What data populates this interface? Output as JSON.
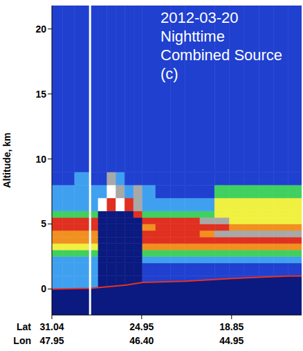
{
  "chart_data": {
    "type": "heatmap",
    "title": "2012-03-20",
    "annotations": [
      "Nighttime",
      "Combined Source",
      "(c)"
    ],
    "ylabel": "Altitude, km",
    "xlabel": "Lat",
    "xlim": [
      31.04,
      14.1
    ],
    "xticks": [
      31.04,
      24.95,
      18.85
    ],
    "ylim": [
      -2,
      21.8
    ],
    "yticks": [
      0,
      5,
      10,
      15,
      20
    ],
    "lon_label": "Lon",
    "lon_ticks": [
      47.95,
      {
        "value": 46.4,
        "label": "46.40"
      },
      44.95
    ],
    "x_edges": [
      31.04,
      30.3,
      29.5,
      28.45,
      27.9,
      27.3,
      26.7,
      26.1,
      25.5,
      24.9,
      24.0,
      23.0,
      22.0,
      21.0,
      20.0,
      19.0,
      18.0,
      17.0,
      16.0,
      15.0,
      14.1
    ],
    "y_edges": [
      -2,
      0,
      1,
      2,
      2.5,
      3,
      3.5,
      4,
      4.5,
      5,
      5.5,
      6,
      7,
      8,
      9,
      21.8
    ],
    "colorscale": [
      "#0b1a80",
      "#2040d0",
      "#40a0f0",
      "#40d060",
      "#f0f040",
      "#f09020",
      "#e03020",
      "#a8a8a8",
      "#ffffff"
    ],
    "cells": [
      [
        0,
        0,
        0,
        0,
        0,
        0,
        0,
        0,
        0,
        0,
        0,
        0,
        0,
        0,
        0,
        0,
        0,
        0,
        0,
        0
      ],
      [
        2,
        2,
        2,
        2,
        0,
        0,
        0,
        0,
        0,
        1,
        1,
        1,
        1,
        1,
        1,
        1,
        1,
        1,
        1,
        1
      ],
      [
        2,
        2,
        2,
        2,
        0,
        0,
        0,
        0,
        0,
        1,
        1,
        1,
        1,
        1,
        1,
        1,
        1,
        1,
        1,
        1
      ],
      [
        2,
        2,
        2,
        2,
        0,
        0,
        0,
        0,
        0,
        2,
        2,
        2,
        2,
        2,
        2,
        2,
        2,
        2,
        2,
        2
      ],
      [
        3,
        3,
        3,
        3,
        0,
        0,
        0,
        0,
        0,
        3,
        3,
        3,
        3,
        3,
        3,
        3,
        3,
        3,
        3,
        3
      ],
      [
        4,
        4,
        4,
        4,
        0,
        0,
        0,
        0,
        0,
        5,
        5,
        5,
        5,
        5,
        5,
        5,
        5,
        5,
        5,
        5
      ],
      [
        5,
        5,
        5,
        5,
        0,
        0,
        0,
        0,
        0,
        6,
        6,
        6,
        6,
        6,
        6,
        6,
        6,
        6,
        6,
        6
      ],
      [
        5,
        5,
        5,
        5,
        0,
        0,
        0,
        0,
        0,
        6,
        6,
        6,
        6,
        5,
        7,
        7,
        7,
        7,
        7,
        7
      ],
      [
        6,
        6,
        6,
        6,
        0,
        0,
        0,
        0,
        0,
        5,
        6,
        6,
        6,
        6,
        6,
        5,
        5,
        5,
        5,
        5
      ],
      [
        6,
        6,
        6,
        6,
        0,
        0,
        0,
        0,
        0,
        6,
        6,
        6,
        6,
        7,
        7,
        4,
        4,
        4,
        4,
        4
      ],
      [
        3,
        3,
        3,
        3,
        0,
        0,
        0,
        0,
        6,
        3,
        3,
        3,
        3,
        3,
        4,
        4,
        4,
        4,
        4,
        4
      ],
      [
        2,
        2,
        2,
        2,
        8,
        6,
        8,
        6,
        7,
        2,
        2,
        2,
        2,
        2,
        4,
        4,
        4,
        4,
        4,
        4
      ],
      [
        2,
        2,
        2,
        2,
        2,
        8,
        7,
        2,
        7,
        2,
        1,
        1,
        1,
        1,
        3,
        3,
        3,
        3,
        3,
        3
      ],
      [
        1,
        1,
        2,
        1,
        1,
        7,
        2,
        1,
        1,
        1,
        1,
        1,
        1,
        1,
        1,
        1,
        1,
        1,
        1,
        1
      ],
      [
        1,
        1,
        1,
        1,
        1,
        1,
        1,
        1,
        1,
        1,
        1,
        1,
        1,
        1,
        1,
        1,
        1,
        1,
        1,
        1
      ]
    ],
    "surface": {
      "color": "#e8321e",
      "x": [
        31.04,
        28.45,
        26.0,
        24.9,
        22.0,
        19.0,
        17.0,
        15.0,
        14.1
      ],
      "values": [
        0.0,
        0.05,
        0.3,
        0.5,
        0.6,
        0.8,
        0.9,
        1.0,
        1.0
      ]
    },
    "vertical_line": {
      "x": 28.45,
      "color": "#ffffff"
    }
  }
}
